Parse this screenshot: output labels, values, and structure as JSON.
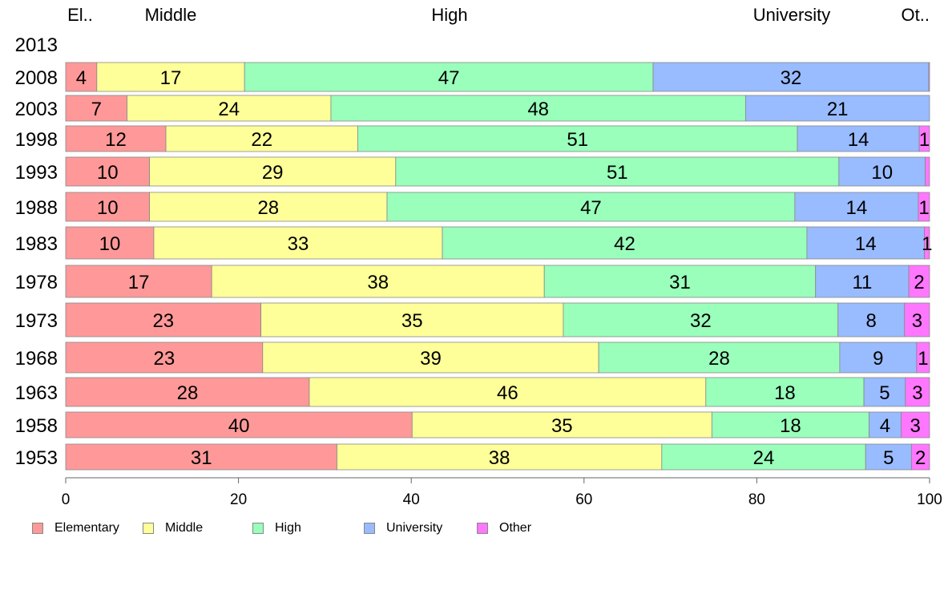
{
  "chart_data": {
    "type": "bar",
    "orientation": "horizontal",
    "stacked": true,
    "categories": [
      "2013",
      "2008",
      "2003",
      "1998",
      "1993",
      "1988",
      "1983",
      "1978",
      "1973",
      "1968",
      "1963",
      "1958",
      "1953"
    ],
    "series": [
      {
        "name": "Elementary",
        "color": "#ff9999",
        "values": [
          null,
          3.6,
          7.1,
          11.6,
          9.7,
          9.7,
          10.2,
          16.9,
          22.6,
          22.8,
          28.2,
          40.1,
          31.4
        ]
      },
      {
        "name": "Middle",
        "color": "#ffff99",
        "values": [
          null,
          17.1,
          23.6,
          22.2,
          28.5,
          27.5,
          33.4,
          38.5,
          35.0,
          38.9,
          45.9,
          34.7,
          37.6
        ]
      },
      {
        "name": "High",
        "color": "#99ffbb",
        "values": [
          null,
          47.3,
          48.0,
          50.9,
          51.3,
          47.2,
          42.2,
          31.4,
          31.8,
          27.9,
          18.3,
          18.2,
          23.6
        ]
      },
      {
        "name": "University",
        "color": "#99bbff",
        "values": [
          null,
          31.9,
          21.3,
          14.1,
          10.0,
          14.3,
          13.6,
          10.8,
          7.7,
          8.9,
          4.8,
          3.7,
          5.3
        ]
      },
      {
        "name": "Other",
        "color": "#ff77ff",
        "values": [
          null,
          0.1,
          0.0,
          1.2,
          0.5,
          1.3,
          0.6,
          2.4,
          2.9,
          1.5,
          2.8,
          3.3,
          2.1
        ]
      }
    ],
    "data_labels": [
      [
        null,
        null,
        null,
        null,
        null
      ],
      [
        "4",
        "17",
        "47",
        "32",
        ""
      ],
      [
        "7",
        "24",
        "48",
        "21",
        ""
      ],
      [
        "12",
        "22",
        "51",
        "14",
        "1"
      ],
      [
        "10",
        "29",
        "51",
        "10",
        ""
      ],
      [
        "10",
        "28",
        "47",
        "14",
        "1"
      ],
      [
        "10",
        "33",
        "42",
        "14",
        "1"
      ],
      [
        "17",
        "38",
        "31",
        "11",
        "2"
      ],
      [
        "23",
        "35",
        "32",
        "8",
        "3"
      ],
      [
        "23",
        "39",
        "28",
        "9",
        "1"
      ],
      [
        "28",
        "46",
        "18",
        "5",
        "3"
      ],
      [
        "40",
        "35",
        "18",
        "4",
        "3"
      ],
      [
        "31",
        "38",
        "24",
        "5",
        "2"
      ]
    ],
    "top_labels": [
      "El..",
      "Middle",
      "High",
      "University",
      "Ot.."
    ],
    "xlim": [
      0,
      100
    ],
    "xticks": [
      "0",
      "20",
      "40",
      "60",
      "80",
      "100"
    ],
    "grid": false,
    "legend_position": "bottom"
  }
}
